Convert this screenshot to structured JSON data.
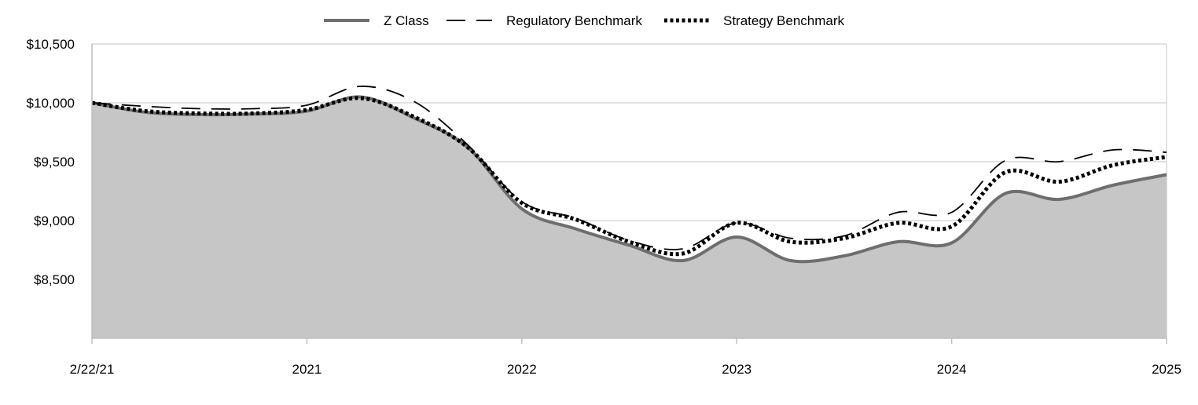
{
  "chart_data": {
    "type": "area",
    "title": "",
    "xlabel": "",
    "ylabel": "",
    "x_ticks": [
      "2/22/21",
      "2021",
      "2022",
      "2023",
      "2024",
      "2025"
    ],
    "x_tick_positions": [
      0,
      1,
      2,
      3,
      4,
      5
    ],
    "xlim": [
      0,
      5
    ],
    "y_ticks": [
      "$10,500",
      "$10,000",
      "$9,500",
      "$9,000",
      "$8,500"
    ],
    "y_tick_values": [
      10500,
      10000,
      9500,
      9000,
      8500
    ],
    "ylim": [
      8000,
      10500
    ],
    "grid": true,
    "legend_position": "top-center",
    "series": [
      {
        "name": "Z Class",
        "style": "solid-area",
        "color": "#6e6e6e",
        "fill": "#c6c6c6",
        "x": [
          0,
          0.25,
          0.5,
          0.75,
          1.0,
          1.25,
          1.5,
          1.75,
          2.0,
          2.25,
          2.5,
          2.75,
          3.0,
          3.25,
          3.5,
          3.75,
          4.0,
          4.25,
          4.5,
          4.75,
          5.0
        ],
        "values": [
          10000,
          9920,
          9900,
          9905,
          9930,
          10050,
          9870,
          9620,
          9100,
          8930,
          8790,
          8660,
          8860,
          8660,
          8700,
          8820,
          8810,
          9230,
          9180,
          9300,
          9390
        ]
      },
      {
        "name": "Regulatory Benchmark",
        "style": "dashed",
        "color": "#000000",
        "x": [
          0,
          0.25,
          0.5,
          0.75,
          1.0,
          1.25,
          1.5,
          1.75,
          2.0,
          2.25,
          2.5,
          2.75,
          3.0,
          3.25,
          3.5,
          3.75,
          4.0,
          4.25,
          4.5,
          4.75,
          5.0
        ],
        "values": [
          10000,
          9970,
          9950,
          9950,
          9980,
          10140,
          10010,
          9640,
          9160,
          9020,
          8830,
          8760,
          8980,
          8850,
          8870,
          9070,
          9070,
          9510,
          9500,
          9600,
          9580
        ]
      },
      {
        "name": "Strategy Benchmark",
        "style": "dotted",
        "color": "#000000",
        "x": [
          0,
          0.25,
          0.5,
          0.75,
          1.0,
          1.25,
          1.5,
          1.75,
          2.0,
          2.25,
          2.5,
          2.75,
          3.0,
          3.25,
          3.5,
          3.75,
          4.0,
          4.25,
          4.5,
          4.75,
          5.0
        ],
        "values": [
          10000,
          9930,
          9910,
          9910,
          9940,
          10040,
          9880,
          9620,
          9150,
          9010,
          8820,
          8720,
          8980,
          8820,
          8850,
          8980,
          8950,
          9410,
          9330,
          9470,
          9540
        ]
      }
    ]
  }
}
